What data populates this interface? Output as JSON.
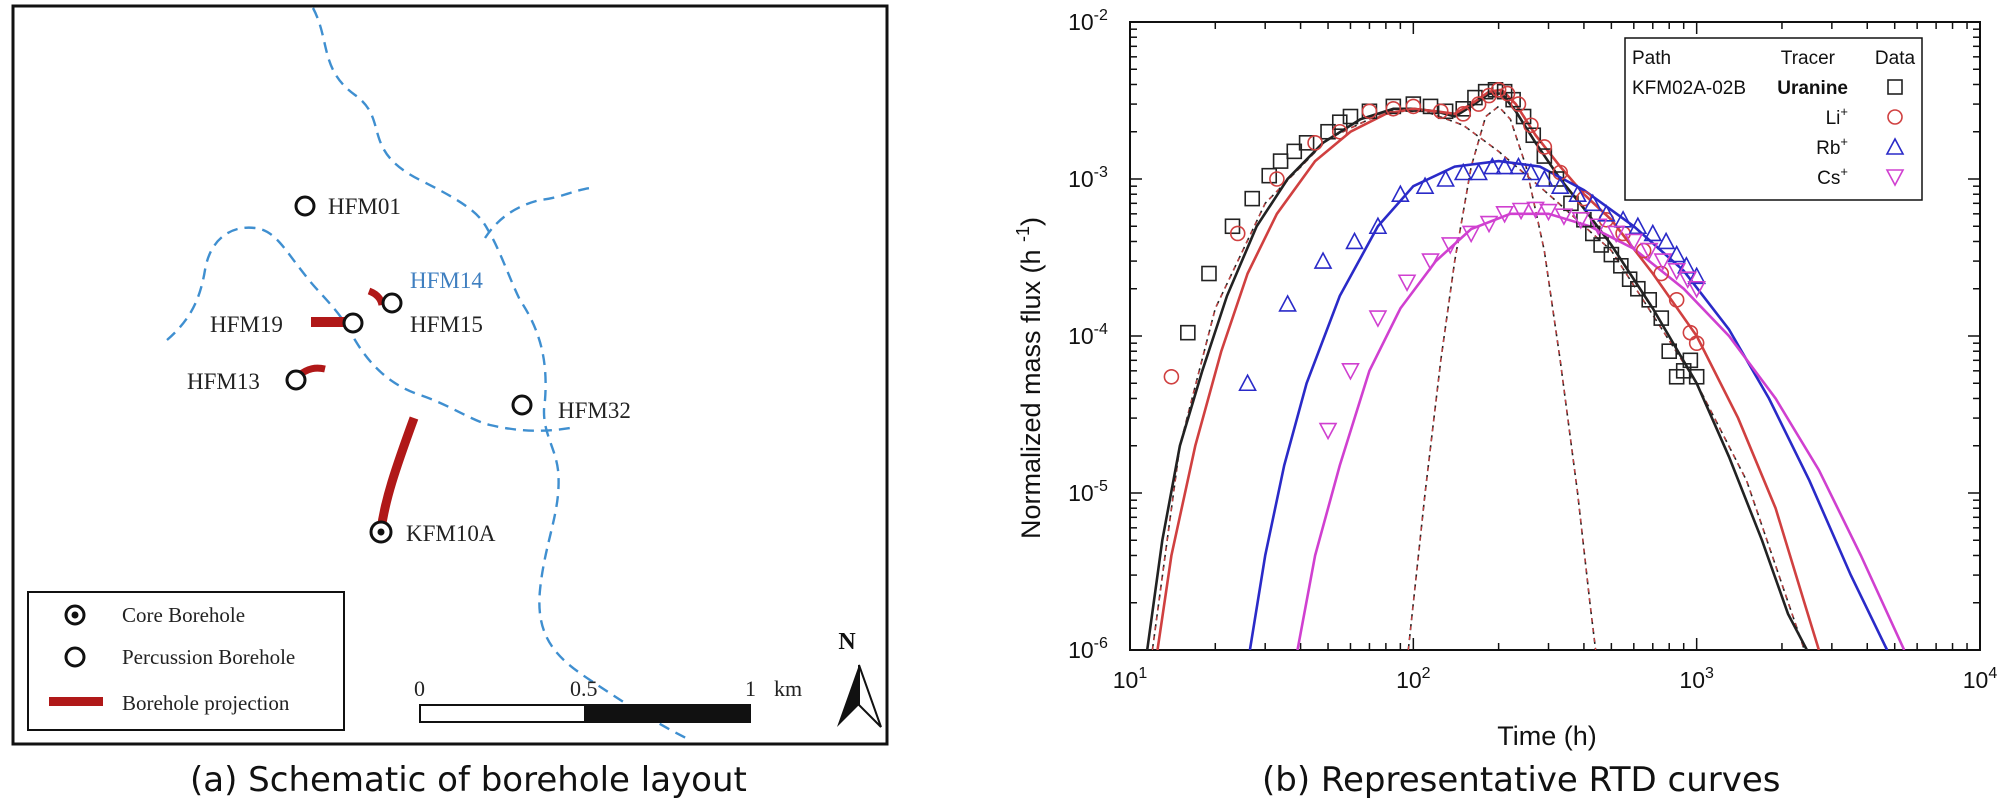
{
  "panel_a": {
    "caption": "(a) Schematic of borehole layout",
    "boreholes": [
      {
        "label": "HFM01",
        "kind": "percussion"
      },
      {
        "label": "HFM14",
        "kind": "percussion",
        "color": "#3f7fc0"
      },
      {
        "label": "HFM15",
        "kind": "percussion"
      },
      {
        "label": "HFM19",
        "kind": "percussion"
      },
      {
        "label": "HFM13",
        "kind": "percussion"
      },
      {
        "label": "HFM32",
        "kind": "percussion"
      },
      {
        "label": "KFM10A",
        "kind": "core"
      }
    ],
    "legend": {
      "core": "Core Borehole",
      "percussion": "Percussion Borehole",
      "projection": "Borehole projection"
    },
    "scale_bar": {
      "ticks": [
        "0",
        "0.5",
        "1"
      ],
      "unit": "km"
    },
    "north_label": "N",
    "colors": {
      "stream": "#3f8fd0",
      "projection": "#b01818"
    }
  },
  "panel_b": {
    "caption": "(b) Representative RTD curves"
  },
  "chart_data": {
    "type": "scatter",
    "title": "",
    "xlabel": "Time (h)",
    "ylabel": "Normalized mass flux (h-1)",
    "xscale": "log",
    "yscale": "log",
    "xlim": [
      10,
      10000
    ],
    "ylim": [
      1e-06,
      0.01
    ],
    "x_tick_labels": [
      "10^1",
      "10^2",
      "10^3",
      "10^4"
    ],
    "y_tick_labels": [
      "10^-6",
      "10^-5",
      "10^-4",
      "10^-3",
      "10^-2"
    ],
    "legend_position": "top-right",
    "legend": {
      "header_path": "Path",
      "header_tracer": "Tracer",
      "header_data": "Data",
      "path": "KFM02A-02B"
    },
    "series": [
      {
        "name": "Uranine",
        "color": "#222222",
        "marker": "square",
        "points": [
          [
            16,
            0.000105
          ],
          [
            19,
            0.00025
          ],
          [
            23,
            0.0005
          ],
          [
            27,
            0.00075
          ],
          [
            31,
            0.00105
          ],
          [
            34,
            0.0013
          ],
          [
            38,
            0.0015
          ],
          [
            42,
            0.0017
          ],
          [
            50,
            0.002
          ],
          [
            55,
            0.0023
          ],
          [
            60,
            0.0025
          ],
          [
            70,
            0.0027
          ],
          [
            85,
            0.0029
          ],
          [
            100,
            0.003
          ],
          [
            115,
            0.0029
          ],
          [
            130,
            0.0027
          ],
          [
            150,
            0.0028
          ],
          [
            165,
            0.0033
          ],
          [
            180,
            0.0036
          ],
          [
            195,
            0.0037
          ],
          [
            210,
            0.0036
          ],
          [
            225,
            0.0032
          ],
          [
            245,
            0.0025
          ],
          [
            265,
            0.0019
          ],
          [
            290,
            0.0014
          ],
          [
            320,
            0.001
          ],
          [
            360,
            0.0007
          ],
          [
            400,
            0.00055
          ],
          [
            430,
            0.00045
          ],
          [
            460,
            0.00038
          ],
          [
            500,
            0.00033
          ],
          [
            540,
            0.00028
          ],
          [
            580,
            0.00023
          ],
          [
            620,
            0.0002
          ],
          [
            680,
            0.00017
          ],
          [
            750,
            0.00013
          ],
          [
            800,
            8e-05
          ],
          [
            850,
            5.5e-05
          ],
          [
            900,
            6e-05
          ],
          [
            950,
            7e-05
          ],
          [
            1000,
            5.5e-05
          ]
        ],
        "fit": [
          [
            11.5,
            1e-06
          ],
          [
            13,
            5e-06
          ],
          [
            15,
            2e-05
          ],
          [
            18,
            6e-05
          ],
          [
            22,
            0.00018
          ],
          [
            28,
            0.0005
          ],
          [
            36,
            0.001
          ],
          [
            48,
            0.0017
          ],
          [
            65,
            0.0024
          ],
          [
            85,
            0.0028
          ],
          [
            100,
            0.0028
          ],
          [
            120,
            0.0027
          ],
          [
            140,
            0.0025
          ],
          [
            160,
            0.0029
          ],
          [
            185,
            0.0035
          ],
          [
            205,
            0.0035
          ],
          [
            230,
            0.0027
          ],
          [
            270,
            0.0017
          ],
          [
            330,
            0.001
          ],
          [
            400,
            0.00065
          ],
          [
            500,
            0.00038
          ],
          [
            700,
            0.00015
          ],
          [
            1000,
            5e-05
          ],
          [
            1300,
            1.7e-05
          ],
          [
            1700,
            5e-06
          ],
          [
            2100,
            1.7e-06
          ],
          [
            2450,
            1e-06
          ]
        ],
        "component_fits": [
          [
            [
              96,
              1e-06
            ],
            [
              110,
              1e-05
            ],
            [
              125,
              7e-05
            ],
            [
              140,
              0.0003
            ],
            [
              160,
              0.0012
            ],
            [
              180,
              0.0025
            ],
            [
              200,
              0.0029
            ],
            [
              220,
              0.0024
            ],
            [
              250,
              0.0012
            ],
            [
              290,
              0.00035
            ],
            [
              330,
              7e-05
            ],
            [
              380,
              1e-05
            ],
            [
              420,
              2e-06
            ],
            [
              440,
              1e-06
            ]
          ],
          [
            [
              12,
              1e-06
            ],
            [
              15,
              2e-05
            ],
            [
              20,
              0.00015
            ],
            [
              30,
              0.0007
            ],
            [
              50,
              0.0018
            ],
            [
              80,
              0.0027
            ],
            [
              110,
              0.0027
            ],
            [
              150,
              0.0022
            ],
            [
              200,
              0.0015
            ],
            [
              300,
              0.0008
            ],
            [
              500,
              0.00035
            ],
            [
              1000,
              5e-05
            ],
            [
              1500,
              1.2e-05
            ],
            [
              2400,
              1e-06
            ]
          ]
        ]
      },
      {
        "name": "Li+",
        "color": "#d04040",
        "marker": "circle",
        "points": [
          [
            14,
            5.5e-05
          ],
          [
            24,
            0.00045
          ],
          [
            33,
            0.001
          ],
          [
            45,
            0.0017
          ],
          [
            55,
            0.002
          ],
          [
            70,
            0.0027
          ],
          [
            85,
            0.0028
          ],
          [
            100,
            0.0029
          ],
          [
            125,
            0.0027
          ],
          [
            150,
            0.0026
          ],
          [
            170,
            0.003
          ],
          [
            185,
            0.0034
          ],
          [
            200,
            0.0037
          ],
          [
            215,
            0.0035
          ],
          [
            235,
            0.003
          ],
          [
            260,
            0.0022
          ],
          [
            290,
            0.0016
          ],
          [
            330,
            0.0011
          ],
          [
            400,
            0.00075
          ],
          [
            480,
            0.00055
          ],
          [
            550,
            0.00045
          ],
          [
            650,
            0.00035
          ],
          [
            750,
            0.00025
          ],
          [
            850,
            0.00017
          ],
          [
            950,
            0.000105
          ],
          [
            1000,
            9e-05
          ]
        ],
        "fit": [
          [
            12.5,
            1e-06
          ],
          [
            14,
            4e-06
          ],
          [
            17,
            2e-05
          ],
          [
            21,
            8e-05
          ],
          [
            26,
            0.00025
          ],
          [
            33,
            0.0006
          ],
          [
            45,
            0.0013
          ],
          [
            60,
            0.002
          ],
          [
            80,
            0.0026
          ],
          [
            100,
            0.0028
          ],
          [
            120,
            0.0027
          ],
          [
            140,
            0.0026
          ],
          [
            160,
            0.003
          ],
          [
            185,
            0.0036
          ],
          [
            205,
            0.0037
          ],
          [
            230,
            0.003
          ],
          [
            270,
            0.0019
          ],
          [
            330,
            0.0012
          ],
          [
            400,
            0.0008
          ],
          [
            500,
            0.00055
          ],
          [
            700,
            0.00025
          ],
          [
            1000,
            0.0001
          ],
          [
            1400,
            3e-05
          ],
          [
            1900,
            8e-06
          ],
          [
            2400,
            2e-06
          ],
          [
            2700,
            1e-06
          ]
        ]
      },
      {
        "name": "Rb+",
        "color": "#2a2ac8",
        "marker": "triangle-up",
        "points": [
          [
            26,
            5e-05
          ],
          [
            36,
            0.00016
          ],
          [
            48,
            0.0003
          ],
          [
            62,
            0.0004
          ],
          [
            75,
            0.0005
          ],
          [
            90,
            0.0008
          ],
          [
            110,
            0.0009
          ],
          [
            130,
            0.001
          ],
          [
            150,
            0.0011
          ],
          [
            170,
            0.0011
          ],
          [
            190,
            0.0012
          ],
          [
            210,
            0.0012
          ],
          [
            235,
            0.0012
          ],
          [
            260,
            0.0011
          ],
          [
            290,
            0.001
          ],
          [
            330,
            0.0009
          ],
          [
            380,
            0.0008
          ],
          [
            430,
            0.0007
          ],
          [
            480,
            0.0006
          ],
          [
            550,
            0.00055
          ],
          [
            620,
            0.0005
          ],
          [
            700,
            0.00045
          ],
          [
            780,
            0.0004
          ],
          [
            850,
            0.00033
          ],
          [
            920,
            0.00028
          ],
          [
            1000,
            0.00024
          ]
        ],
        "fit": [
          [
            26.5,
            1e-06
          ],
          [
            30,
            4e-06
          ],
          [
            35,
            1.5e-05
          ],
          [
            42,
            5e-05
          ],
          [
            55,
            0.00018
          ],
          [
            75,
            0.0005
          ],
          [
            100,
            0.0009
          ],
          [
            140,
            0.0012
          ],
          [
            200,
            0.0013
          ],
          [
            280,
            0.0012
          ],
          [
            400,
            0.00085
          ],
          [
            600,
            0.0005
          ],
          [
            900,
            0.00026
          ],
          [
            1300,
            0.00011
          ],
          [
            1800,
            4e-05
          ],
          [
            2500,
            1.2e-05
          ],
          [
            3500,
            3e-06
          ],
          [
            4700,
            1e-06
          ]
        ]
      },
      {
        "name": "Cs+",
        "color": "#d040d0",
        "marker": "triangle-down",
        "points": [
          [
            50,
            2.5e-05
          ],
          [
            60,
            6e-05
          ],
          [
            75,
            0.00013
          ],
          [
            95,
            0.00022
          ],
          [
            115,
            0.0003
          ],
          [
            135,
            0.00038
          ],
          [
            160,
            0.00045
          ],
          [
            185,
            0.00052
          ],
          [
            210,
            0.0006
          ],
          [
            240,
            0.00063
          ],
          [
            270,
            0.00064
          ],
          [
            300,
            0.00062
          ],
          [
            340,
            0.00058
          ],
          [
            390,
            0.00055
          ],
          [
            450,
            0.0005
          ],
          [
            520,
            0.00045
          ],
          [
            600,
            0.0004
          ],
          [
            680,
            0.00035
          ],
          [
            760,
            0.0003
          ],
          [
            850,
            0.00026
          ],
          [
            930,
            0.00023
          ],
          [
            1000,
            0.0002
          ]
        ],
        "fit": [
          [
            39,
            1e-06
          ],
          [
            45,
            4e-06
          ],
          [
            55,
            1.5e-05
          ],
          [
            70,
            6e-05
          ],
          [
            90,
            0.00015
          ],
          [
            120,
            0.0003
          ],
          [
            160,
            0.00048
          ],
          [
            220,
            0.0006
          ],
          [
            300,
            0.0006
          ],
          [
            420,
            0.0005
          ],
          [
            600,
            0.00036
          ],
          [
            900,
            0.0002
          ],
          [
            1300,
            0.0001
          ],
          [
            1900,
            4e-05
          ],
          [
            2700,
            1.4e-05
          ],
          [
            3800,
            4e-06
          ],
          [
            5400,
            1e-06
          ]
        ]
      }
    ]
  }
}
